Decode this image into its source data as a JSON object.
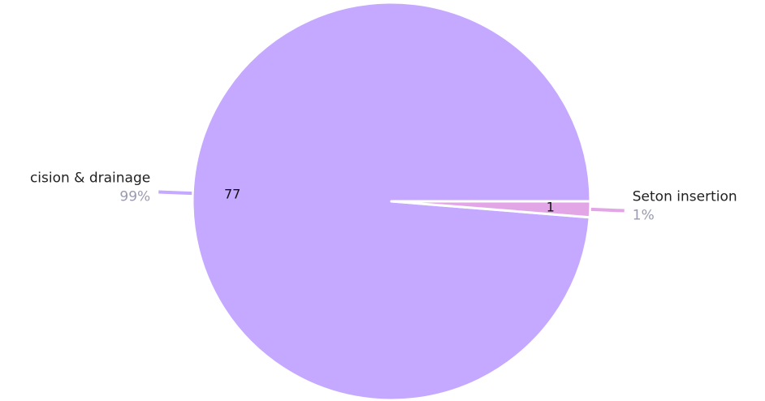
{
  "chart_data": {
    "type": "pie",
    "categories": [
      "cision & drainage",
      "Seton insertion"
    ],
    "values": [
      77,
      1
    ],
    "percent_labels": [
      "99%",
      "1%"
    ],
    "colors": [
      "#c5a8ff",
      "#e2a6e6"
    ]
  }
}
